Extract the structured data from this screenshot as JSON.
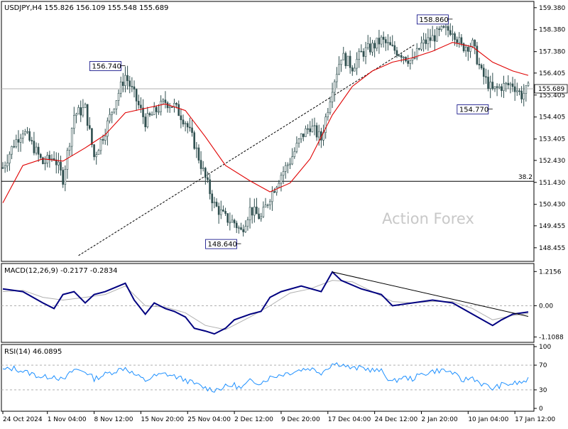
{
  "chart_data": [
    {
      "type": "candlestick",
      "title": "USDJPY,H4  155.826 156.109 155.548 155.689",
      "ylim": [
        147.9,
        159.6
      ],
      "y_ticks": [
        "159.380",
        "158.380",
        "157.380",
        "156.405",
        "155.405",
        "154.405",
        "153.405",
        "152.430",
        "151.430",
        "150.430",
        "149.455",
        "148.455"
      ],
      "y_tick_values": [
        159.38,
        158.38,
        157.38,
        156.405,
        155.405,
        154.405,
        153.405,
        152.43,
        151.43,
        150.43,
        149.455,
        148.455
      ],
      "current_price": "155.689",
      "current_price_value": 155.689,
      "annotations": [
        {
          "text": "156.740",
          "i": 55,
          "price": 156.74
        },
        {
          "text": "148.640",
          "i": 107,
          "price": 148.64
        },
        {
          "text": "158.860",
          "i": 202,
          "price": 158.86
        },
        {
          "text": "154.770",
          "i": 220,
          "price": 154.77
        }
      ],
      "fib_level": {
        "text": "38.2",
        "price": 151.48
      },
      "trendline": {
        "from": {
          "i": 34,
          "price": 148.1
        },
        "to": {
          "i": 185,
          "price": 157.7
        }
      },
      "watermark": "Action Forex",
      "price_path": [
        {
          "i": 0,
          "p": 152.1
        },
        {
          "i": 5,
          "p": 153.2
        },
        {
          "i": 9,
          "p": 153.8
        },
        {
          "i": 14,
          "p": 153.0
        },
        {
          "i": 18,
          "p": 152.3
        },
        {
          "i": 23,
          "p": 152.6
        },
        {
          "i": 27,
          "p": 151.6
        },
        {
          "i": 32,
          "p": 154.5
        },
        {
          "i": 37,
          "p": 154.8
        },
        {
          "i": 41,
          "p": 152.6
        },
        {
          "i": 46,
          "p": 153.8
        },
        {
          "i": 50,
          "p": 155.0
        },
        {
          "i": 55,
          "p": 156.3
        },
        {
          "i": 59,
          "p": 155.4
        },
        {
          "i": 64,
          "p": 154.2
        },
        {
          "i": 68,
          "p": 154.6
        },
        {
          "i": 73,
          "p": 155.1
        },
        {
          "i": 77,
          "p": 154.9
        },
        {
          "i": 82,
          "p": 154.2
        },
        {
          "i": 86,
          "p": 153.2
        },
        {
          "i": 91,
          "p": 151.6
        },
        {
          "i": 95,
          "p": 150.4
        },
        {
          "i": 100,
          "p": 149.8
        },
        {
          "i": 104,
          "p": 149.6
        },
        {
          "i": 107,
          "p": 149.2
        },
        {
          "i": 111,
          "p": 150.2
        },
        {
          "i": 116,
          "p": 149.8
        },
        {
          "i": 120,
          "p": 150.8
        },
        {
          "i": 125,
          "p": 151.8
        },
        {
          "i": 129,
          "p": 152.4
        },
        {
          "i": 134,
          "p": 153.5
        },
        {
          "i": 138,
          "p": 154.0
        },
        {
          "i": 143,
          "p": 153.4
        },
        {
          "i": 148,
          "p": 155.8
        },
        {
          "i": 152,
          "p": 157.2
        },
        {
          "i": 157,
          "p": 156.7
        },
        {
          "i": 161,
          "p": 157.3
        },
        {
          "i": 166,
          "p": 157.6
        },
        {
          "i": 170,
          "p": 157.9
        },
        {
          "i": 175,
          "p": 157.5
        },
        {
          "i": 179,
          "p": 157.3
        },
        {
          "i": 184,
          "p": 156.9
        },
        {
          "i": 188,
          "p": 157.7
        },
        {
          "i": 193,
          "p": 158.0
        },
        {
          "i": 197,
          "p": 158.3
        },
        {
          "i": 202,
          "p": 158.4
        },
        {
          "i": 206,
          "p": 157.6
        },
        {
          "i": 211,
          "p": 157.7
        },
        {
          "i": 215,
          "p": 156.4
        },
        {
          "i": 220,
          "p": 155.6
        },
        {
          "i": 224,
          "p": 155.8
        },
        {
          "i": 229,
          "p": 155.9
        },
        {
          "i": 233,
          "p": 155.4
        },
        {
          "i": 236,
          "p": 155.69
        }
      ],
      "ma_path": [
        {
          "i": 0,
          "p": 150.5
        },
        {
          "i": 9,
          "p": 152.2
        },
        {
          "i": 18,
          "p": 152.5
        },
        {
          "i": 27,
          "p": 152.4
        },
        {
          "i": 37,
          "p": 153.0
        },
        {
          "i": 46,
          "p": 153.6
        },
        {
          "i": 55,
          "p": 154.6
        },
        {
          "i": 64,
          "p": 154.8
        },
        {
          "i": 73,
          "p": 155.0
        },
        {
          "i": 82,
          "p": 154.7
        },
        {
          "i": 91,
          "p": 153.5
        },
        {
          "i": 100,
          "p": 152.2
        },
        {
          "i": 111,
          "p": 151.5
        },
        {
          "i": 120,
          "p": 151.0
        },
        {
          "i": 129,
          "p": 151.4
        },
        {
          "i": 138,
          "p": 152.5
        },
        {
          "i": 148,
          "p": 154.5
        },
        {
          "i": 157,
          "p": 155.8
        },
        {
          "i": 166,
          "p": 156.5
        },
        {
          "i": 175,
          "p": 156.9
        },
        {
          "i": 184,
          "p": 157.1
        },
        {
          "i": 193,
          "p": 157.4
        },
        {
          "i": 202,
          "p": 157.8
        },
        {
          "i": 211,
          "p": 157.6
        },
        {
          "i": 220,
          "p": 156.9
        },
        {
          "i": 229,
          "p": 156.5
        },
        {
          "i": 236,
          "p": 156.3
        }
      ]
    },
    {
      "type": "line",
      "title": "MACD(12,26,9) -0.2177 -0.2834",
      "ylim": [
        -1.25,
        1.45
      ],
      "y_ticks": [
        "1.2156",
        "0.00",
        "-1.1088"
      ],
      "y_tick_values": [
        1.2156,
        0.0,
        -1.1088
      ],
      "zero_label": "0.00",
      "series": [
        {
          "values": [
            {
              "i": 0,
              "v": 0.6
            },
            {
              "i": 9,
              "v": 0.5
            },
            {
              "i": 18,
              "v": 0.1
            },
            {
              "i": 23,
              "v": -0.1
            },
            {
              "i": 27,
              "v": 0.4
            },
            {
              "i": 32,
              "v": 0.5
            },
            {
              "i": 37,
              "v": 0.1
            },
            {
              "i": 41,
              "v": 0.4
            },
            {
              "i": 46,
              "v": 0.5
            },
            {
              "i": 55,
              "v": 0.8
            },
            {
              "i": 59,
              "v": 0.2
            },
            {
              "i": 64,
              "v": -0.3
            },
            {
              "i": 68,
              "v": 0.1
            },
            {
              "i": 73,
              "v": -0.1
            },
            {
              "i": 77,
              "v": -0.2
            },
            {
              "i": 82,
              "v": -0.4
            },
            {
              "i": 86,
              "v": -0.8
            },
            {
              "i": 91,
              "v": -0.9
            },
            {
              "i": 95,
              "v": -1.0
            },
            {
              "i": 100,
              "v": -0.8
            },
            {
              "i": 104,
              "v": -0.5
            },
            {
              "i": 111,
              "v": -0.3
            },
            {
              "i": 116,
              "v": -0.2
            },
            {
              "i": 120,
              "v": 0.3
            },
            {
              "i": 125,
              "v": 0.5
            },
            {
              "i": 134,
              "v": 0.7
            },
            {
              "i": 143,
              "v": 0.5
            },
            {
              "i": 148,
              "v": 1.2
            },
            {
              "i": 152,
              "v": 0.9
            },
            {
              "i": 161,
              "v": 0.6
            },
            {
              "i": 170,
              "v": 0.4
            },
            {
              "i": 175,
              "v": 0.0
            },
            {
              "i": 184,
              "v": 0.1
            },
            {
              "i": 193,
              "v": 0.2
            },
            {
              "i": 202,
              "v": 0.1
            },
            {
              "i": 211,
              "v": -0.3
            },
            {
              "i": 220,
              "v": -0.7
            },
            {
              "i": 224,
              "v": -0.5
            },
            {
              "i": 229,
              "v": -0.3
            },
            {
              "i": 236,
              "v": -0.22
            }
          ]
        },
        {
          "values": [
            {
              "i": 0,
              "v": 0.5
            },
            {
              "i": 9,
              "v": 0.55
            },
            {
              "i": 18,
              "v": 0.3
            },
            {
              "i": 27,
              "v": 0.2
            },
            {
              "i": 37,
              "v": 0.3
            },
            {
              "i": 46,
              "v": 0.4
            },
            {
              "i": 55,
              "v": 0.7
            },
            {
              "i": 64,
              "v": 0.0
            },
            {
              "i": 73,
              "v": -0.05
            },
            {
              "i": 82,
              "v": -0.25
            },
            {
              "i": 91,
              "v": -0.7
            },
            {
              "i": 100,
              "v": -0.85
            },
            {
              "i": 111,
              "v": -0.4
            },
            {
              "i": 120,
              "v": 0.0
            },
            {
              "i": 129,
              "v": 0.45
            },
            {
              "i": 138,
              "v": 0.6
            },
            {
              "i": 148,
              "v": 0.9
            },
            {
              "i": 157,
              "v": 0.85
            },
            {
              "i": 166,
              "v": 0.5
            },
            {
              "i": 175,
              "v": 0.15
            },
            {
              "i": 184,
              "v": 0.1
            },
            {
              "i": 193,
              "v": 0.15
            },
            {
              "i": 202,
              "v": 0.15
            },
            {
              "i": 211,
              "v": -0.1
            },
            {
              "i": 220,
              "v": -0.5
            },
            {
              "i": 229,
              "v": -0.35
            },
            {
              "i": 236,
              "v": -0.28
            }
          ]
        }
      ],
      "trendline": {
        "from": {
          "i": 148,
          "v": 1.2
        },
        "to": {
          "i": 236,
          "v": -0.38
        }
      }
    },
    {
      "type": "line",
      "title": "RSI(14) 46.0895",
      "ylim": [
        0,
        100
      ],
      "y_ticks": [
        "100",
        "70",
        "30",
        "0"
      ],
      "y_tick_values": [
        100,
        70,
        30,
        0
      ],
      "levels": [
        70,
        30
      ],
      "series": [
        {
          "values": [
            {
              "i": 0,
              "v": 62
            },
            {
              "i": 5,
              "v": 65
            },
            {
              "i": 9,
              "v": 60
            },
            {
              "i": 14,
              "v": 55
            },
            {
              "i": 18,
              "v": 50
            },
            {
              "i": 23,
              "v": 53
            },
            {
              "i": 27,
              "v": 45
            },
            {
              "i": 32,
              "v": 63
            },
            {
              "i": 37,
              "v": 60
            },
            {
              "i": 41,
              "v": 48
            },
            {
              "i": 46,
              "v": 55
            },
            {
              "i": 50,
              "v": 60
            },
            {
              "i": 55,
              "v": 66
            },
            {
              "i": 59,
              "v": 55
            },
            {
              "i": 64,
              "v": 45
            },
            {
              "i": 68,
              "v": 52
            },
            {
              "i": 73,
              "v": 56
            },
            {
              "i": 77,
              "v": 52
            },
            {
              "i": 82,
              "v": 46
            },
            {
              "i": 86,
              "v": 40
            },
            {
              "i": 91,
              "v": 33
            },
            {
              "i": 95,
              "v": 30
            },
            {
              "i": 100,
              "v": 35
            },
            {
              "i": 104,
              "v": 38
            },
            {
              "i": 107,
              "v": 32
            },
            {
              "i": 111,
              "v": 44
            },
            {
              "i": 116,
              "v": 42
            },
            {
              "i": 120,
              "v": 50
            },
            {
              "i": 125,
              "v": 55
            },
            {
              "i": 129,
              "v": 58
            },
            {
              "i": 134,
              "v": 63
            },
            {
              "i": 138,
              "v": 65
            },
            {
              "i": 143,
              "v": 58
            },
            {
              "i": 148,
              "v": 72
            },
            {
              "i": 152,
              "v": 72
            },
            {
              "i": 157,
              "v": 64
            },
            {
              "i": 161,
              "v": 66
            },
            {
              "i": 166,
              "v": 62
            },
            {
              "i": 170,
              "v": 60
            },
            {
              "i": 175,
              "v": 42
            },
            {
              "i": 179,
              "v": 50
            },
            {
              "i": 184,
              "v": 48
            },
            {
              "i": 188,
              "v": 55
            },
            {
              "i": 193,
              "v": 60
            },
            {
              "i": 197,
              "v": 62
            },
            {
              "i": 202,
              "v": 58
            },
            {
              "i": 206,
              "v": 45
            },
            {
              "i": 211,
              "v": 50
            },
            {
              "i": 215,
              "v": 40
            },
            {
              "i": 220,
              "v": 32
            },
            {
              "i": 224,
              "v": 38
            },
            {
              "i": 229,
              "v": 40
            },
            {
              "i": 233,
              "v": 42
            },
            {
              "i": 236,
              "v": 46
            }
          ]
        }
      ]
    }
  ],
  "x_ticks": [
    {
      "label": "24 Oct 2024",
      "i": 0
    },
    {
      "label": "1 Nov 04:00",
      "i": 20
    },
    {
      "label": "8 Nov 12:00",
      "i": 41
    },
    {
      "label": "15 Nov 20:00",
      "i": 62
    },
    {
      "label": "25 Nov 04:00",
      "i": 83
    },
    {
      "label": "2 Dec 12:00",
      "i": 104
    },
    {
      "label": "9 Dec 20:00",
      "i": 125
    },
    {
      "label": "17 Dec 04:00",
      "i": 146
    },
    {
      "label": "24 Dec 12:00",
      "i": 167
    },
    {
      "label": "2 Jan 20:00",
      "i": 188
    },
    {
      "label": "10 Jan 04:00",
      "i": 209
    },
    {
      "label": "17 Jan 12:00",
      "i": 230
    }
  ],
  "colors": {
    "candle": "#2f4f4f",
    "ma": "#e00000",
    "macd": "#000080",
    "signal": "#b0b0b0",
    "rsi": "#1e90ff",
    "grid": "#c8c8c8",
    "frame": "#000000",
    "watermark": "#c8c8c8"
  }
}
